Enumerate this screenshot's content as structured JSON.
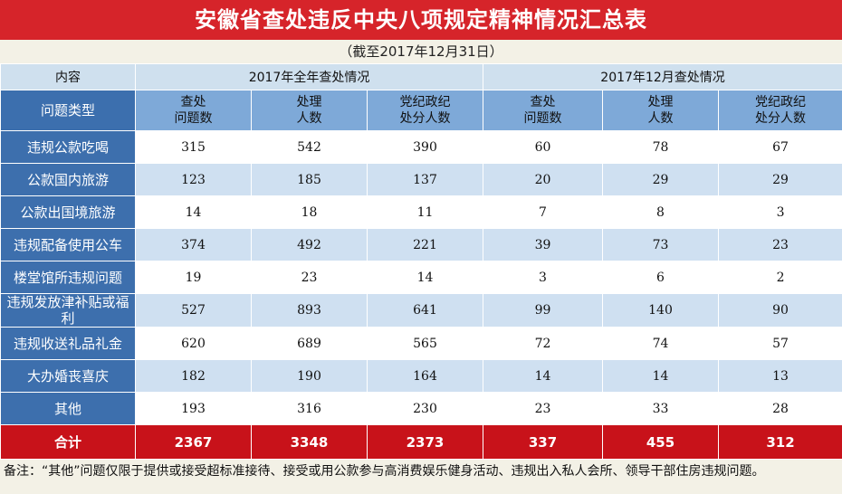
{
  "title": "安徽省查处违反中央八项规定精神情况汇总表",
  "subtitle": "（截至2017年12月31日）",
  "header": {
    "content_label": "内容",
    "group_annual": "2017年全年查处情况",
    "group_december": "2017年12月查处情况"
  },
  "subheader": {
    "type_label": "问题类型",
    "cols": [
      [
        "查处",
        "问题数"
      ],
      [
        "处理",
        "人数"
      ],
      [
        "党纪政纪",
        "处分人数"
      ],
      [
        "查处",
        "问题数"
      ],
      [
        "处理",
        "人数"
      ],
      [
        "党纪政纪",
        "处分人数"
      ]
    ]
  },
  "rows": [
    {
      "type": "违规公款吃喝",
      "values": [
        "315",
        "542",
        "390",
        "60",
        "78",
        "67"
      ]
    },
    {
      "type": "公款国内旅游",
      "values": [
        "123",
        "185",
        "137",
        "20",
        "29",
        "29"
      ]
    },
    {
      "type": "公款出国境旅游",
      "values": [
        "14",
        "18",
        "11",
        "7",
        "8",
        "3"
      ]
    },
    {
      "type": "违规配备使用公车",
      "values": [
        "374",
        "492",
        "221",
        "39",
        "73",
        "23"
      ]
    },
    {
      "type": "楼堂馆所违规问题",
      "values": [
        "19",
        "23",
        "14",
        "3",
        "6",
        "2"
      ]
    },
    {
      "type": "违规发放津补贴或福利",
      "values": [
        "527",
        "893",
        "641",
        "99",
        "140",
        "90"
      ]
    },
    {
      "type": "违规收送礼品礼金",
      "values": [
        "620",
        "689",
        "565",
        "72",
        "74",
        "57"
      ]
    },
    {
      "type": "大办婚丧喜庆",
      "values": [
        "182",
        "190",
        "164",
        "14",
        "14",
        "13"
      ]
    },
    {
      "type": "其他",
      "values": [
        "193",
        "316",
        "230",
        "23",
        "33",
        "28"
      ]
    }
  ],
  "total": {
    "label": "合计",
    "values": [
      "2367",
      "3348",
      "2373",
      "337",
      "455",
      "312"
    ]
  },
  "note": "备注：“其他”问题仅限于提供或接受超标准接待、接受或用公款参与高消费娱乐健身活动、违规出入私人会所、领导干部住房违规问题。"
}
